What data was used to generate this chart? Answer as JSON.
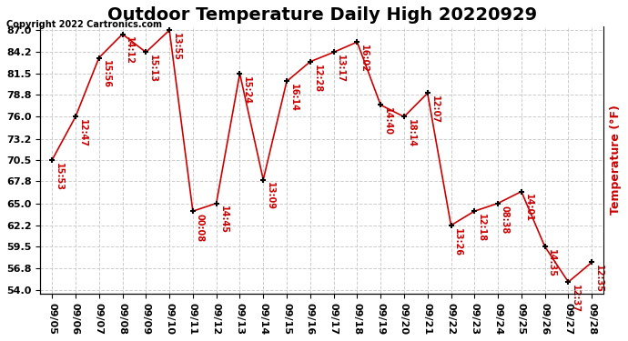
{
  "title": "Outdoor Temperature Daily High 20220929",
  "ylabel": "Temperature (°F)",
  "copyright": "Copyright 2022 Cartronics.com",
  "background_color": "#ffffff",
  "line_color": "#cc0000",
  "marker_color": "#000000",
  "text_color": "#cc0000",
  "dates": [
    "09/05",
    "09/06",
    "09/07",
    "09/08",
    "09/09",
    "09/10",
    "09/11",
    "09/12",
    "09/13",
    "09/14",
    "09/15",
    "09/16",
    "09/17",
    "09/18",
    "09/19",
    "09/20",
    "09/21",
    "09/22",
    "09/23",
    "09/24",
    "09/25",
    "09/26",
    "09/27",
    "09/28"
  ],
  "temperatures": [
    70.5,
    76.0,
    83.5,
    86.5,
    84.2,
    87.0,
    64.0,
    65.0,
    81.5,
    68.0,
    80.5,
    83.0,
    84.2,
    85.5,
    77.5,
    76.0,
    79.0,
    62.2,
    64.0,
    65.0,
    66.5,
    59.5,
    55.0,
    57.5
  ],
  "labels": [
    "15:53",
    "12:47",
    "15:56",
    "14:12",
    "15:13",
    "13:55",
    "00:08",
    "14:45",
    "15:24",
    "13:09",
    "16:14",
    "12:28",
    "13:17",
    "16:02",
    "14:40",
    "18:14",
    "12:07",
    "13:26",
    "12:18",
    "08:38",
    "14:01",
    "14:35",
    "12:37",
    "12:35"
  ],
  "ylim": [
    54.0,
    87.0
  ],
  "yticks": [
    54.0,
    56.8,
    59.5,
    62.2,
    65.0,
    67.8,
    70.5,
    73.2,
    76.0,
    78.8,
    81.5,
    84.2,
    87.0
  ],
  "grid_color": "#cccccc",
  "title_fontsize": 14,
  "label_fontsize": 7,
  "axis_fontsize": 8,
  "copyright_fontsize": 7,
  "ylabel_fontsize": 9
}
